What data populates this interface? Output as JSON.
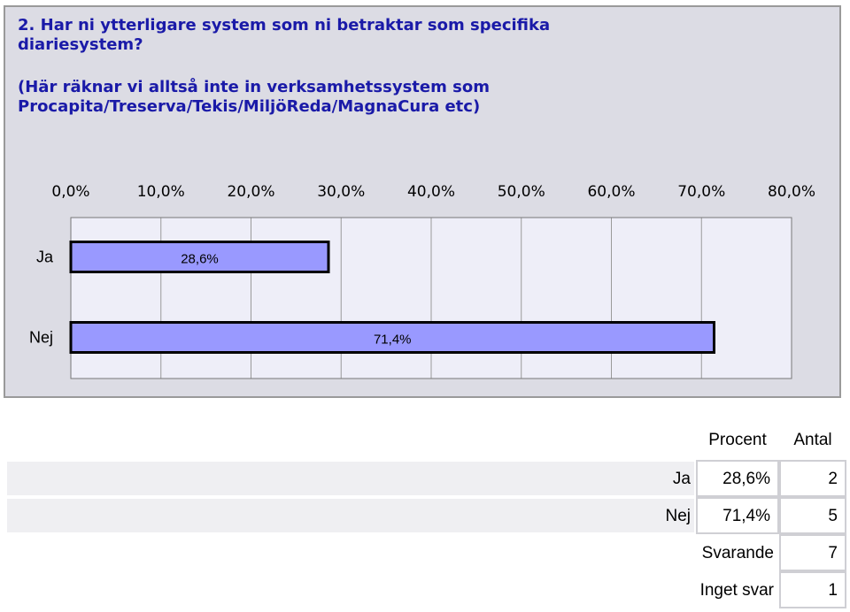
{
  "question": {
    "title_lines": [
      "2. Har ni ytterligare system som ni betraktar som specifika",
      "diariesystem?"
    ],
    "note_lines": [
      "(Här räknar vi alltså inte in verksamhetssystem som",
      "Procapita/Treserva/Tekis/MiljöReda/MagnaCura etc)"
    ]
  },
  "chart_data": {
    "type": "bar",
    "orientation": "horizontal",
    "categories": [
      "Ja",
      "Nej"
    ],
    "values": [
      28.6,
      71.4
    ],
    "value_labels": [
      "28,6%",
      "71,4%"
    ],
    "x_ticks": [
      "0,0%",
      "10,0%",
      "20,0%",
      "30,0%",
      "40,0%",
      "50,0%",
      "60,0%",
      "70,0%",
      "80,0%"
    ],
    "xlim": [
      0,
      80
    ],
    "grid": true,
    "bar_color": "#9999ff"
  },
  "table": {
    "headers": [
      "Procent",
      "Antal"
    ],
    "rows": [
      {
        "label": "Ja",
        "percent": "28,6%",
        "count": "2"
      },
      {
        "label": "Nej",
        "percent": "71,4%",
        "count": "5"
      }
    ],
    "summary": [
      {
        "label": "Svarande",
        "count": "7"
      },
      {
        "label": "Inget svar",
        "count": "1"
      }
    ]
  }
}
